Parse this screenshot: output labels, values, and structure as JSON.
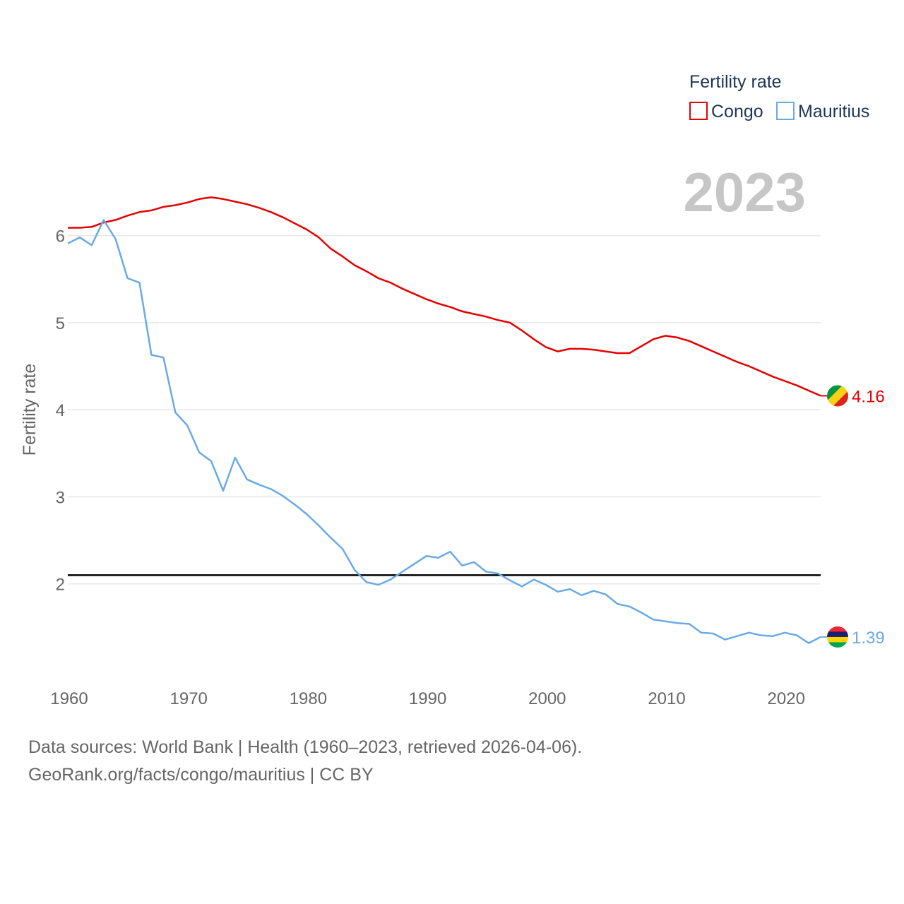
{
  "chart_data": {
    "type": "line",
    "year_label": "2023",
    "ylabel": "Fertility rate",
    "xlabel": "",
    "xlim": [
      1960,
      2023
    ],
    "ylim": [
      1.0,
      6.8
    ],
    "x_ticks": [
      1960,
      1970,
      1980,
      1990,
      2000,
      2010,
      2020
    ],
    "y_ticks": [
      2,
      3,
      4,
      5,
      6
    ],
    "reference_line": 2.1,
    "legend_title": "Fertility rate",
    "series": [
      {
        "name": "Congo",
        "color": "#e60000",
        "end_label": "4.16",
        "flag": "congo-flag-icon",
        "years": [
          1960,
          1961,
          1962,
          1963,
          1964,
          1965,
          1966,
          1967,
          1968,
          1969,
          1970,
          1971,
          1972,
          1973,
          1974,
          1975,
          1976,
          1977,
          1978,
          1979,
          1980,
          1981,
          1982,
          1983,
          1984,
          1985,
          1986,
          1987,
          1988,
          1989,
          1990,
          1991,
          1992,
          1993,
          1994,
          1995,
          1996,
          1997,
          1998,
          1999,
          2000,
          2001,
          2002,
          2003,
          2004,
          2005,
          2006,
          2007,
          2008,
          2009,
          2010,
          2011,
          2012,
          2013,
          2014,
          2015,
          2016,
          2017,
          2018,
          2019,
          2020,
          2021,
          2022,
          2023
        ],
        "values": [
          6.09,
          6.09,
          6.1,
          6.15,
          6.18,
          6.23,
          6.27,
          6.29,
          6.33,
          6.35,
          6.38,
          6.42,
          6.44,
          6.42,
          6.39,
          6.36,
          6.32,
          6.27,
          6.21,
          6.14,
          6.07,
          5.98,
          5.85,
          5.76,
          5.66,
          5.59,
          5.51,
          5.46,
          5.39,
          5.33,
          5.27,
          5.22,
          5.18,
          5.13,
          5.1,
          5.07,
          5.03,
          5.0,
          4.91,
          4.81,
          4.72,
          4.67,
          4.7,
          4.7,
          4.69,
          4.67,
          4.65,
          4.65,
          4.73,
          4.81,
          4.85,
          4.83,
          4.79,
          4.73,
          4.67,
          4.61,
          4.55,
          4.5,
          4.44,
          4.38,
          4.33,
          4.28,
          4.22,
          4.16
        ]
      },
      {
        "name": "Mauritius",
        "color": "#6aaae4",
        "end_label": "1.39",
        "flag": "mauritius-flag-icon",
        "years": [
          1960,
          1961,
          1962,
          1963,
          1964,
          1965,
          1966,
          1967,
          1968,
          1969,
          1970,
          1971,
          1972,
          1973,
          1974,
          1975,
          1976,
          1977,
          1978,
          1979,
          1980,
          1981,
          1982,
          1983,
          1984,
          1985,
          1986,
          1987,
          1988,
          1989,
          1990,
          1991,
          1992,
          1993,
          1994,
          1995,
          1996,
          1997,
          1998,
          1999,
          2000,
          2001,
          2002,
          2003,
          2004,
          2005,
          2006,
          2007,
          2008,
          2009,
          2010,
          2011,
          2012,
          2013,
          2014,
          2015,
          2016,
          2017,
          2018,
          2019,
          2020,
          2021,
          2022,
          2023
        ],
        "values": [
          5.91,
          5.98,
          5.89,
          6.18,
          5.96,
          5.51,
          5.46,
          4.63,
          4.6,
          3.97,
          3.82,
          3.51,
          3.41,
          3.07,
          3.45,
          3.2,
          3.14,
          3.09,
          3.01,
          2.91,
          2.8,
          2.67,
          2.53,
          2.4,
          2.16,
          2.02,
          1.99,
          2.05,
          2.14,
          2.23,
          2.32,
          2.3,
          2.37,
          2.21,
          2.25,
          2.14,
          2.12,
          2.04,
          1.97,
          2.05,
          1.99,
          1.91,
          1.94,
          1.87,
          1.92,
          1.88,
          1.77,
          1.74,
          1.67,
          1.59,
          1.57,
          1.55,
          1.54,
          1.44,
          1.43,
          1.36,
          1.4,
          1.44,
          1.41,
          1.4,
          1.44,
          1.41,
          1.32,
          1.39
        ]
      }
    ]
  },
  "footer": {
    "line1": "Data sources: World Bank | Health (1960–2023, retrieved 2026-04-06).",
    "line2": "GeoRank.org/facts/congo/mauritius | CC BY"
  }
}
